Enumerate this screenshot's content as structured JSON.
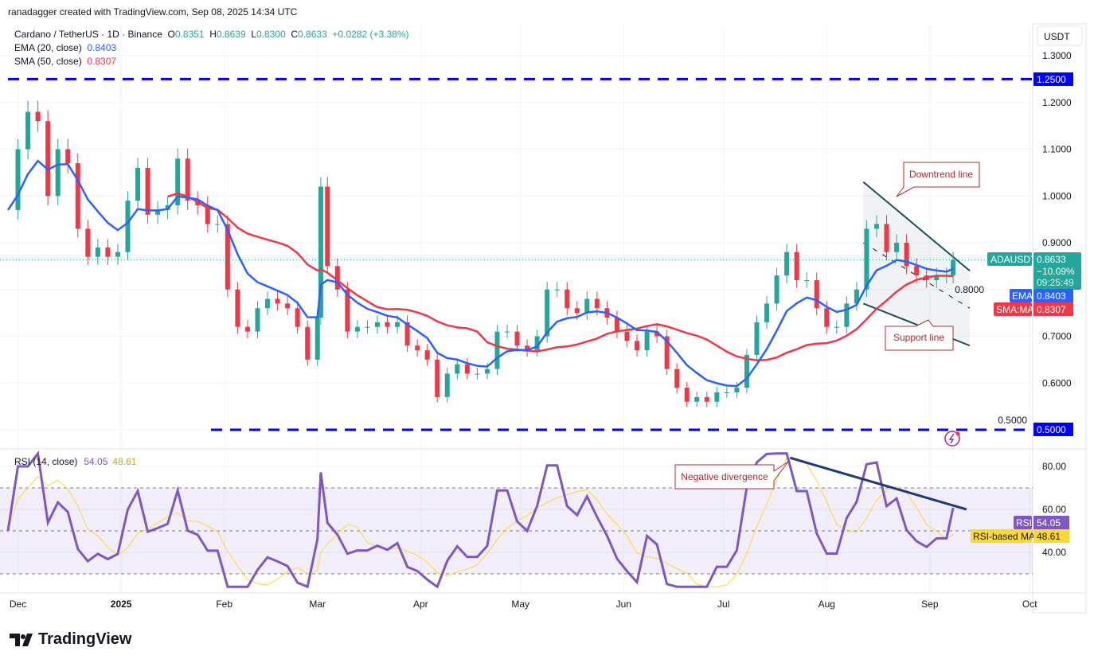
{
  "credit": "ranadagger created with TradingView.com, Sep 08, 2025 14:34 UTC",
  "legend": {
    "symbol": "Cardano / TetherUS · 1D · Binance",
    "o_label": "O",
    "o": "0.8351",
    "h_label": "H",
    "h": "0.8639",
    "l_label": "L",
    "l": "0.8300",
    "c_label": "C",
    "c": "0.8633",
    "change": "+0.0282 (+3.38%)",
    "ema_label": "EMA (20, close)",
    "ema_value": "0.8403",
    "sma_label": "SMA (50, close)",
    "sma_value": "0.8307",
    "rsi_label": "RSI (14, close)",
    "rsi_value": "54.05",
    "rsi_ma_value": "48.61"
  },
  "currency": "USDT",
  "price_tags": {
    "symbol": "ADAUSDT",
    "price": "0.8633",
    "change": "−10.09%",
    "countdown": "09:25:49",
    "ema_tag": "EMA",
    "ema": "0.8403",
    "sma_tag": "SMA:MA",
    "sma": "0.8307",
    "level_high": "1.2500",
    "level_low": "0.5000",
    "rsi_tag": "RSI",
    "rsi": "54.05",
    "rsi_ma_tag": "RSI-based MA",
    "rsi_ma": "48.61"
  },
  "annotations": {
    "downtrend": "Downtrend line",
    "support": "Support line",
    "divergence": "Negative divergence"
  },
  "logo": "TradingView",
  "colors": {
    "up": "#26a69a",
    "down": "#f23645",
    "ema": "#2962ff",
    "sma": "#f23645",
    "rsi": "#7e57c2",
    "rsi_ma": "#fdd835",
    "level": "#0000ff",
    "trend": "#1e3a78"
  },
  "chart_data": {
    "type": "candlestick",
    "price_axis": {
      "ticks": [
        "1.3000",
        "1.2000",
        "1.1000",
        "1.0000",
        "0.9000",
        "0.8000",
        "0.7000",
        "0.6000",
        "0.5000"
      ],
      "range": [
        0.47,
        1.33
      ]
    },
    "rsi_axis": {
      "ticks": [
        "80.00",
        "60.00",
        "40.00"
      ],
      "range": [
        22,
        88
      ],
      "bands": [
        70,
        30
      ],
      "mid": 50
    },
    "time_ticks": [
      {
        "label": "Dec",
        "date": "2024-12-01"
      },
      {
        "label": "2025",
        "date": "2025-01-01"
      },
      {
        "label": "Feb",
        "date": "2025-02-01"
      },
      {
        "label": "Mar",
        "date": "2025-03-01"
      },
      {
        "label": "Apr",
        "date": "2025-04-01"
      },
      {
        "label": "May",
        "date": "2025-05-01"
      },
      {
        "label": "Jun",
        "date": "2025-06-01"
      },
      {
        "label": "Jul",
        "date": "2025-07-01"
      },
      {
        "label": "Aug",
        "date": "2025-08-01"
      },
      {
        "label": "Sep",
        "date": "2025-09-01"
      },
      {
        "label": "Oct",
        "date": "2025-10-01"
      }
    ],
    "closes": [
      [
        "2024-11-28",
        0.97
      ],
      [
        "2024-12-01",
        1.1
      ],
      [
        "2024-12-04",
        1.18
      ],
      [
        "2024-12-07",
        1.16
      ],
      [
        "2024-12-10",
        1.0
      ],
      [
        "2024-12-13",
        1.1
      ],
      [
        "2024-12-16",
        1.07
      ],
      [
        "2024-12-19",
        0.93
      ],
      [
        "2024-12-22",
        0.87
      ],
      [
        "2024-12-25",
        0.89
      ],
      [
        "2024-12-28",
        0.87
      ],
      [
        "2024-12-31",
        0.88
      ],
      [
        "2025-01-03",
        0.99
      ],
      [
        "2025-01-06",
        1.06
      ],
      [
        "2025-01-09",
        0.96
      ],
      [
        "2025-01-12",
        0.97
      ],
      [
        "2025-01-15",
        0.98
      ],
      [
        "2025-01-18",
        1.08
      ],
      [
        "2025-01-21",
        0.99
      ],
      [
        "2025-01-24",
        0.98
      ],
      [
        "2025-01-27",
        0.94
      ],
      [
        "2025-01-30",
        0.94
      ],
      [
        "2025-02-02",
        0.8
      ],
      [
        "2025-02-05",
        0.72
      ],
      [
        "2025-02-08",
        0.71
      ],
      [
        "2025-02-11",
        0.76
      ],
      [
        "2025-02-14",
        0.78
      ],
      [
        "2025-02-17",
        0.77
      ],
      [
        "2025-02-20",
        0.76
      ],
      [
        "2025-02-23",
        0.72
      ],
      [
        "2025-02-26",
        0.65
      ],
      [
        "2025-03-01",
        0.74
      ],
      [
        "2025-03-02",
        1.02
      ],
      [
        "2025-03-04",
        0.85
      ],
      [
        "2025-03-07",
        0.8
      ],
      [
        "2025-03-10",
        0.71
      ],
      [
        "2025-03-13",
        0.72
      ],
      [
        "2025-03-16",
        0.72
      ],
      [
        "2025-03-19",
        0.73
      ],
      [
        "2025-03-22",
        0.72
      ],
      [
        "2025-03-25",
        0.73
      ],
      [
        "2025-03-28",
        0.68
      ],
      [
        "2025-03-31",
        0.67
      ],
      [
        "2025-04-03",
        0.65
      ],
      [
        "2025-04-06",
        0.57
      ],
      [
        "2025-04-09",
        0.62
      ],
      [
        "2025-04-12",
        0.64
      ],
      [
        "2025-04-15",
        0.62
      ],
      [
        "2025-04-18",
        0.62
      ],
      [
        "2025-04-21",
        0.63
      ],
      [
        "2025-04-24",
        0.71
      ],
      [
        "2025-04-27",
        0.71
      ],
      [
        "2025-04-30",
        0.68
      ],
      [
        "2025-05-03",
        0.67
      ],
      [
        "2025-05-06",
        0.7
      ],
      [
        "2025-05-09",
        0.8
      ],
      [
        "2025-05-12",
        0.8
      ],
      [
        "2025-05-15",
        0.76
      ],
      [
        "2025-05-18",
        0.75
      ],
      [
        "2025-05-21",
        0.78
      ],
      [
        "2025-05-24",
        0.76
      ],
      [
        "2025-05-27",
        0.74
      ],
      [
        "2025-05-30",
        0.71
      ],
      [
        "2025-06-02",
        0.69
      ],
      [
        "2025-06-05",
        0.67
      ],
      [
        "2025-06-08",
        0.71
      ],
      [
        "2025-06-11",
        0.7
      ],
      [
        "2025-06-14",
        0.63
      ],
      [
        "2025-06-17",
        0.59
      ],
      [
        "2025-06-20",
        0.56
      ],
      [
        "2025-06-23",
        0.57
      ],
      [
        "2025-06-26",
        0.56
      ],
      [
        "2025-06-29",
        0.58
      ],
      [
        "2025-07-02",
        0.58
      ],
      [
        "2025-07-05",
        0.59
      ],
      [
        "2025-07-08",
        0.66
      ],
      [
        "2025-07-11",
        0.73
      ],
      [
        "2025-07-14",
        0.77
      ],
      [
        "2025-07-17",
        0.83
      ],
      [
        "2025-07-20",
        0.88
      ],
      [
        "2025-07-23",
        0.82
      ],
      [
        "2025-07-26",
        0.82
      ],
      [
        "2025-07-29",
        0.76
      ],
      [
        "2025-08-01",
        0.72
      ],
      [
        "2025-08-04",
        0.72
      ],
      [
        "2025-08-07",
        0.77
      ],
      [
        "2025-08-10",
        0.8
      ],
      [
        "2025-08-13",
        0.93
      ],
      [
        "2025-08-16",
        0.94
      ],
      [
        "2025-08-19",
        0.88
      ],
      [
        "2025-08-22",
        0.9
      ],
      [
        "2025-08-25",
        0.85
      ],
      [
        "2025-08-28",
        0.83
      ],
      [
        "2025-08-31",
        0.82
      ],
      [
        "2025-09-03",
        0.83
      ],
      [
        "2025-09-06",
        0.83
      ],
      [
        "2025-09-08",
        0.8633
      ]
    ],
    "levels": [
      1.25,
      0.5
    ],
    "channel": {
      "upper": [
        [
          "2025-08-12",
          1.03
        ],
        [
          "2025-09-13",
          0.84
        ]
      ],
      "lower": [
        [
          "2025-08-12",
          0.77
        ],
        [
          "2025-09-13",
          0.68
        ]
      ]
    },
    "rsi_trendline": [
      [
        "2025-07-21",
        84
      ],
      [
        "2025-09-12",
        60
      ]
    ]
  }
}
